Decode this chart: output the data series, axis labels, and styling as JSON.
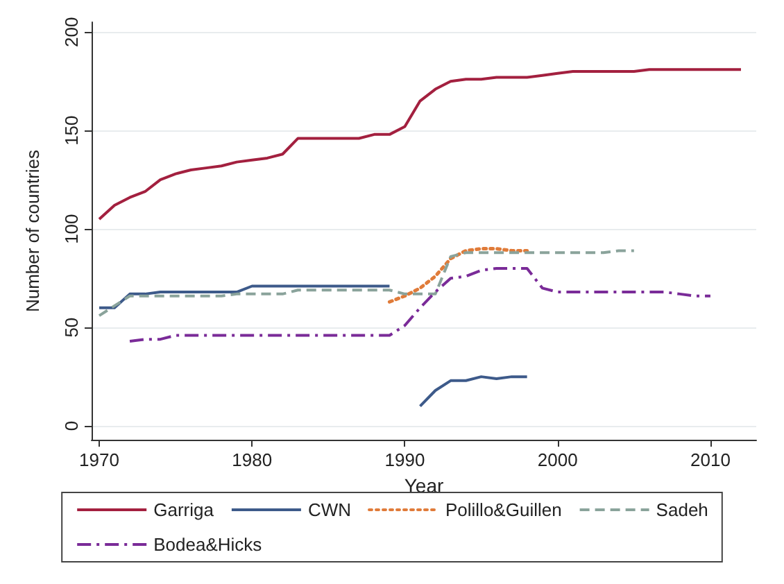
{
  "chart_data": {
    "type": "line",
    "xlabel": "Year",
    "ylabel": "Number of countries",
    "xlim": [
      1969.5,
      2013
    ],
    "xticks": [
      1970,
      1980,
      1990,
      2000,
      2010
    ],
    "ylim": [
      -7,
      205
    ],
    "yticks": [
      0,
      50,
      100,
      150,
      200
    ],
    "grid": "y",
    "legend": "bottom",
    "marker": "none",
    "series": [
      {
        "name": "Garriga",
        "color": "#a3203f",
        "line_style": "solid",
        "x": [
          1970,
          1971,
          1972,
          1973,
          1974,
          1975,
          1976,
          1977,
          1978,
          1979,
          1980,
          1981,
          1982,
          1983,
          1984,
          1985,
          1986,
          1987,
          1988,
          1989,
          1990,
          1991,
          1992,
          1993,
          1994,
          1995,
          1996,
          1997,
          1998,
          1999,
          2000,
          2001,
          2002,
          2003,
          2004,
          2005,
          2006,
          2007,
          2008,
          2009,
          2010,
          2011,
          2012
        ],
        "values": [
          105,
          112,
          116,
          119,
          125,
          128,
          130,
          131,
          132,
          134,
          135,
          136,
          138,
          146,
          146,
          146,
          146,
          146,
          148,
          148,
          152,
          165,
          171,
          175,
          176,
          176,
          177,
          177,
          177,
          178,
          179,
          180,
          180,
          180,
          180,
          180,
          181,
          181,
          181,
          181,
          181,
          181,
          181
        ]
      },
      {
        "name": "CWN",
        "color": "#3d5a8a",
        "line_style": "solid",
        "x": [
          1970,
          1971,
          1972,
          1973,
          1974,
          1975,
          1976,
          1977,
          1978,
          1979,
          1980,
          1981,
          1982,
          1983,
          1984,
          1985,
          1986,
          1987,
          1988,
          1989,
          1990,
          1991,
          1992,
          1993,
          1994,
          1995,
          1996,
          1997,
          1998
        ],
        "values": [
          60,
          60,
          67,
          67,
          68,
          68,
          68,
          68,
          68,
          68,
          71,
          71,
          71,
          71,
          71,
          71,
          71,
          71,
          71,
          71,
          null,
          10,
          18,
          23,
          23,
          25,
          24,
          25,
          25
        ]
      },
      {
        "name": "Polillo&Guillen",
        "color": "#e07b39",
        "line_style": "dotted",
        "x": [
          1989,
          1990,
          1991,
          1992,
          1993,
          1994,
          1995,
          1996,
          1997,
          1998
        ],
        "values": [
          63,
          66,
          70,
          76,
          85,
          89,
          90,
          90,
          89,
          89
        ]
      },
      {
        "name": "Sadeh",
        "color": "#8aa39b",
        "line_style": "dashed",
        "x": [
          1970,
          1971,
          1972,
          1973,
          1974,
          1975,
          1976,
          1977,
          1978,
          1979,
          1980,
          1981,
          1982,
          1983,
          1984,
          1985,
          1986,
          1987,
          1988,
          1989,
          1990,
          1991,
          1992,
          1993,
          1994,
          1995,
          1996,
          1997,
          1998,
          1999,
          2000,
          2001,
          2002,
          2003,
          2004,
          2005
        ],
        "values": [
          56,
          61,
          66,
          66,
          66,
          66,
          66,
          66,
          66,
          67,
          67,
          67,
          67,
          69,
          69,
          69,
          69,
          69,
          69,
          69,
          67,
          67,
          67,
          86,
          88,
          88,
          88,
          88,
          88,
          88,
          88,
          88,
          88,
          88,
          89,
          89
        ]
      },
      {
        "name": "Bodea&Hicks",
        "color": "#7a2b98",
        "line_style": "dashdot",
        "x": [
          1972,
          1973,
          1974,
          1975,
          1976,
          1977,
          1978,
          1979,
          1980,
          1981,
          1982,
          1983,
          1984,
          1985,
          1986,
          1987,
          1988,
          1989,
          1990,
          1991,
          1992,
          1993,
          1994,
          1995,
          1996,
          1997,
          1998,
          1999,
          2000,
          2001,
          2002,
          2003,
          2004,
          2005,
          2006,
          2007,
          2008,
          2009,
          2010
        ],
        "values": [
          43,
          44,
          44,
          46,
          46,
          46,
          46,
          46,
          46,
          46,
          46,
          46,
          46,
          46,
          46,
          46,
          46,
          46,
          51,
          60,
          68,
          75,
          76,
          79,
          80,
          80,
          80,
          70,
          68,
          68,
          68,
          68,
          68,
          68,
          68,
          68,
          67,
          66,
          66
        ]
      }
    ]
  }
}
